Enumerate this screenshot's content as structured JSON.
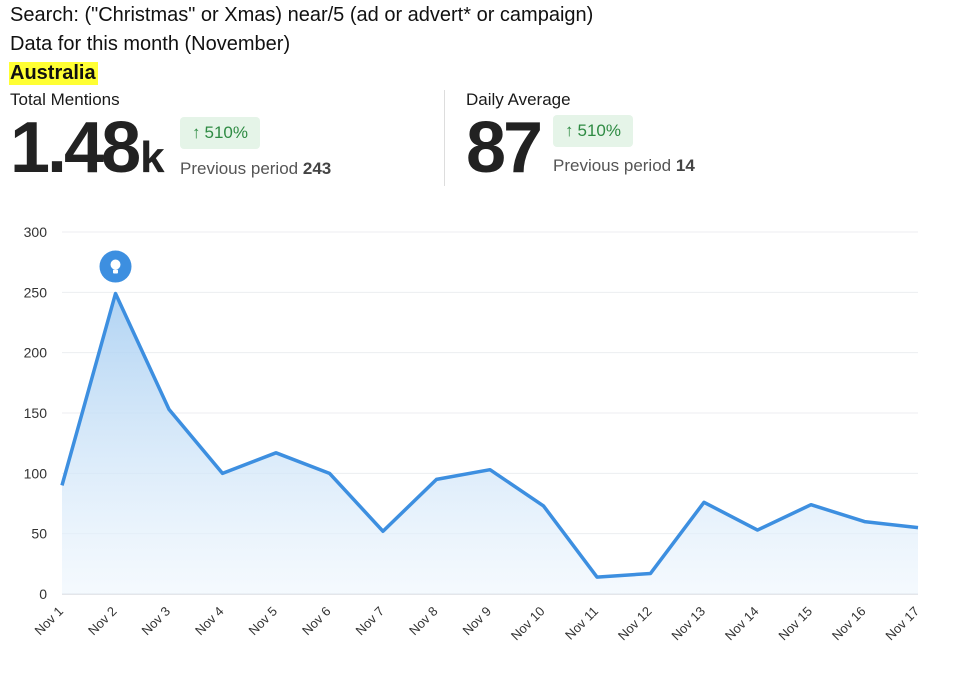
{
  "header": {
    "search": "Search: (\"Christmas\" or Xmas) near/5 (ad or advert* or campaign)",
    "period": "Data for this month (November)",
    "region": "Australia"
  },
  "stats": {
    "total": {
      "label": "Total Mentions",
      "value": "1.48",
      "suffix": "k",
      "change": "510%",
      "prev_label": "Previous period",
      "prev_value": "243"
    },
    "average": {
      "label": "Daily Average",
      "value": "87",
      "change": "510%",
      "prev_label": "Previous period",
      "prev_value": "14"
    }
  },
  "colors": {
    "line": "#3d8fe0",
    "fill_top": "#a9cff2",
    "fill_bottom": "#eef6fd",
    "up": "#2e8b43",
    "highlight": "#ffff33"
  },
  "chart_data": {
    "type": "area",
    "categories": [
      "Nov 1",
      "Nov 2",
      "Nov 3",
      "Nov 4",
      "Nov 5",
      "Nov 6",
      "Nov 7",
      "Nov 8",
      "Nov 9",
      "Nov 10",
      "Nov 11",
      "Nov 12",
      "Nov 13",
      "Nov 14",
      "Nov 15",
      "Nov 16",
      "Nov 17"
    ],
    "values": [
      90,
      249,
      153,
      100,
      117,
      100,
      52,
      95,
      103,
      73,
      14,
      17,
      76,
      53,
      74,
      60,
      55
    ],
    "ylim": [
      0,
      300
    ],
    "yticks": [
      "0",
      "50",
      "100",
      "150",
      "200",
      "250",
      "300"
    ],
    "grid": true,
    "annotation": {
      "category": "Nov 2",
      "icon": "lightbulb-icon"
    }
  }
}
